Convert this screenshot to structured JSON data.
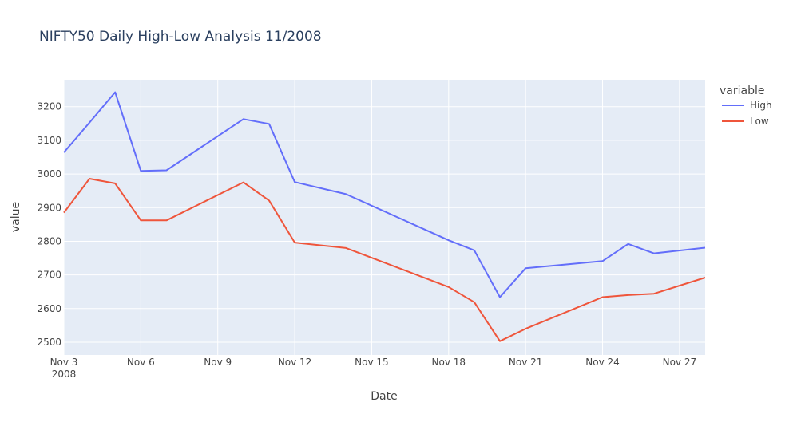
{
  "chart_data": {
    "type": "line",
    "title": "NIFTY50 Daily High-Low Analysis 11/2008",
    "xlabel": "Date",
    "ylabel": "value",
    "x_range": [
      "2008-11-03",
      "2008-11-28"
    ],
    "ylim": [
      2462,
      3280
    ],
    "x_ticks": [
      {
        "date": "2008-11-03",
        "label": "Nov 3",
        "sublabel": "2008"
      },
      {
        "date": "2008-11-06",
        "label": "Nov 6"
      },
      {
        "date": "2008-11-09",
        "label": "Nov 9"
      },
      {
        "date": "2008-11-12",
        "label": "Nov 12"
      },
      {
        "date": "2008-11-15",
        "label": "Nov 15"
      },
      {
        "date": "2008-11-18",
        "label": "Nov 18"
      },
      {
        "date": "2008-11-21",
        "label": "Nov 21"
      },
      {
        "date": "2008-11-24",
        "label": "Nov 24"
      },
      {
        "date": "2008-11-27",
        "label": "Nov 27"
      }
    ],
    "y_ticks": [
      2500,
      2600,
      2700,
      2800,
      2900,
      3000,
      3100,
      3200
    ],
    "grid": true,
    "legend": {
      "title": "variable",
      "position": "top-right"
    },
    "x": [
      "2008-11-03",
      "2008-11-04",
      "2008-11-05",
      "2008-11-06",
      "2008-11-07",
      "2008-11-10",
      "2008-11-11",
      "2008-11-12",
      "2008-11-14",
      "2008-11-18",
      "2008-11-19",
      "2008-11-20",
      "2008-11-21",
      "2008-11-24",
      "2008-11-25",
      "2008-11-26",
      "2008-11-28"
    ],
    "series": [
      {
        "name": "High",
        "color": "#636efa",
        "values": [
          3064,
          3153,
          3243,
          3009,
          3011,
          3163,
          3149,
          2976,
          2940,
          2803,
          2773,
          2634,
          2720,
          2741,
          2792,
          2764,
          2781
        ]
      },
      {
        "name": "Low",
        "color": "#ef553b",
        "values": [
          2885,
          2986,
          2972,
          2862,
          2862,
          2975,
          2921,
          2796,
          2780,
          2664,
          2619,
          2503,
          2540,
          2634,
          2640,
          2644,
          2692
        ]
      }
    ],
    "colors": {
      "plot_bg": "#e5ecf6",
      "grid": "#ffffff",
      "text": "#444444",
      "title": "#2a3f5f"
    }
  }
}
